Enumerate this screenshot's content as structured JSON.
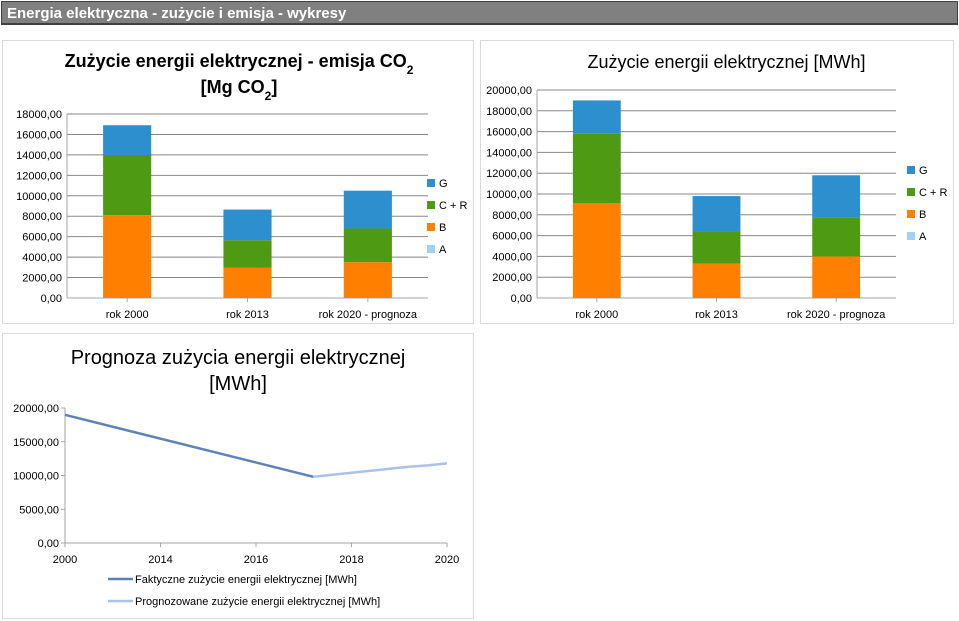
{
  "page": {
    "title": "Energia elektryczna - zużycie i emisja - wykresy"
  },
  "colors": {
    "G": "#2e8fcf",
    "CR": "#4e9a12",
    "B": "#ff8000",
    "A": "#9fd4f0",
    "actual": "#5b84b1",
    "forecast": "#a9c2e6",
    "axis": "#a6a6a6",
    "grid": "#888888"
  },
  "chart_data": [
    {
      "id": "co2",
      "type": "bar",
      "stacked": true,
      "title_line1": "Zużycie energii elektrycznej - emisja CO",
      "title_sub1": "2",
      "title_line2": "[Mg CO",
      "title_sub2": "2",
      "title_line2_end": "]",
      "categories": [
        "rok 2000",
        "rok 2013",
        "rok 2020 - prognoza"
      ],
      "series": [
        {
          "name": "A",
          "values": [
            0,
            0,
            0
          ]
        },
        {
          "name": "B",
          "values": [
            8100,
            2950,
            3500
          ]
        },
        {
          "name": "C + R",
          "values": [
            5900,
            2700,
            3300
          ]
        },
        {
          "name": "G",
          "values": [
            2900,
            3000,
            3700
          ]
        }
      ],
      "ylim": [
        0,
        18000
      ],
      "yticks": [
        "0,00",
        "2000,00",
        "4000,00",
        "6000,00",
        "8000,00",
        "10000,00",
        "12000,00",
        "14000,00",
        "16000,00",
        "18000,00"
      ],
      "legend_position": "right",
      "grid": true
    },
    {
      "id": "mwh",
      "type": "bar",
      "stacked": true,
      "title": "Zużycie energii elektrycznej [MWh]",
      "categories": [
        "rok 2000",
        "rok 2013",
        "rok 2020 - prognoza"
      ],
      "series": [
        {
          "name": "A",
          "values": [
            0,
            0,
            0
          ]
        },
        {
          "name": "B",
          "values": [
            9100,
            3300,
            4000
          ]
        },
        {
          "name": "C + R",
          "values": [
            6700,
            3100,
            3700
          ]
        },
        {
          "name": "G",
          "values": [
            3200,
            3400,
            4100
          ]
        }
      ],
      "ylim": [
        0,
        20000
      ],
      "yticks": [
        "0,00",
        "2000,00",
        "4000,00",
        "6000,00",
        "8000,00",
        "10000,00",
        "12000,00",
        "14000,00",
        "16000,00",
        "18000,00",
        "20000,00"
      ],
      "legend_position": "right",
      "grid": true
    },
    {
      "id": "forecast",
      "type": "line",
      "title_line1": "Prognoza zużycia energii elektrycznej",
      "title_line2": "[MWh]",
      "xlim": [
        2000,
        2020
      ],
      "xticks": [
        "2000",
        "2014",
        "2016",
        "2018",
        "2020"
      ],
      "ylim": [
        0,
        20000
      ],
      "yticks": [
        "0,00",
        "5000,00",
        "10000,00",
        "15000,00",
        "20000,00"
      ],
      "series": [
        {
          "name": "Faktyczne zużycie energii elektrycznej [MWh]",
          "x": [
            2000,
            2013
          ],
          "y": [
            19000,
            9800
          ]
        },
        {
          "name": "Prognozowane zużycie energii elektrycznej [MWh]",
          "x": [
            2013,
            2014,
            2015,
            2016,
            2017,
            2018,
            2019,
            2020
          ],
          "y": [
            9800,
            10100,
            10400,
            10700,
            11000,
            11300,
            11500,
            11800
          ]
        }
      ],
      "legend_position": "bottom"
    }
  ]
}
